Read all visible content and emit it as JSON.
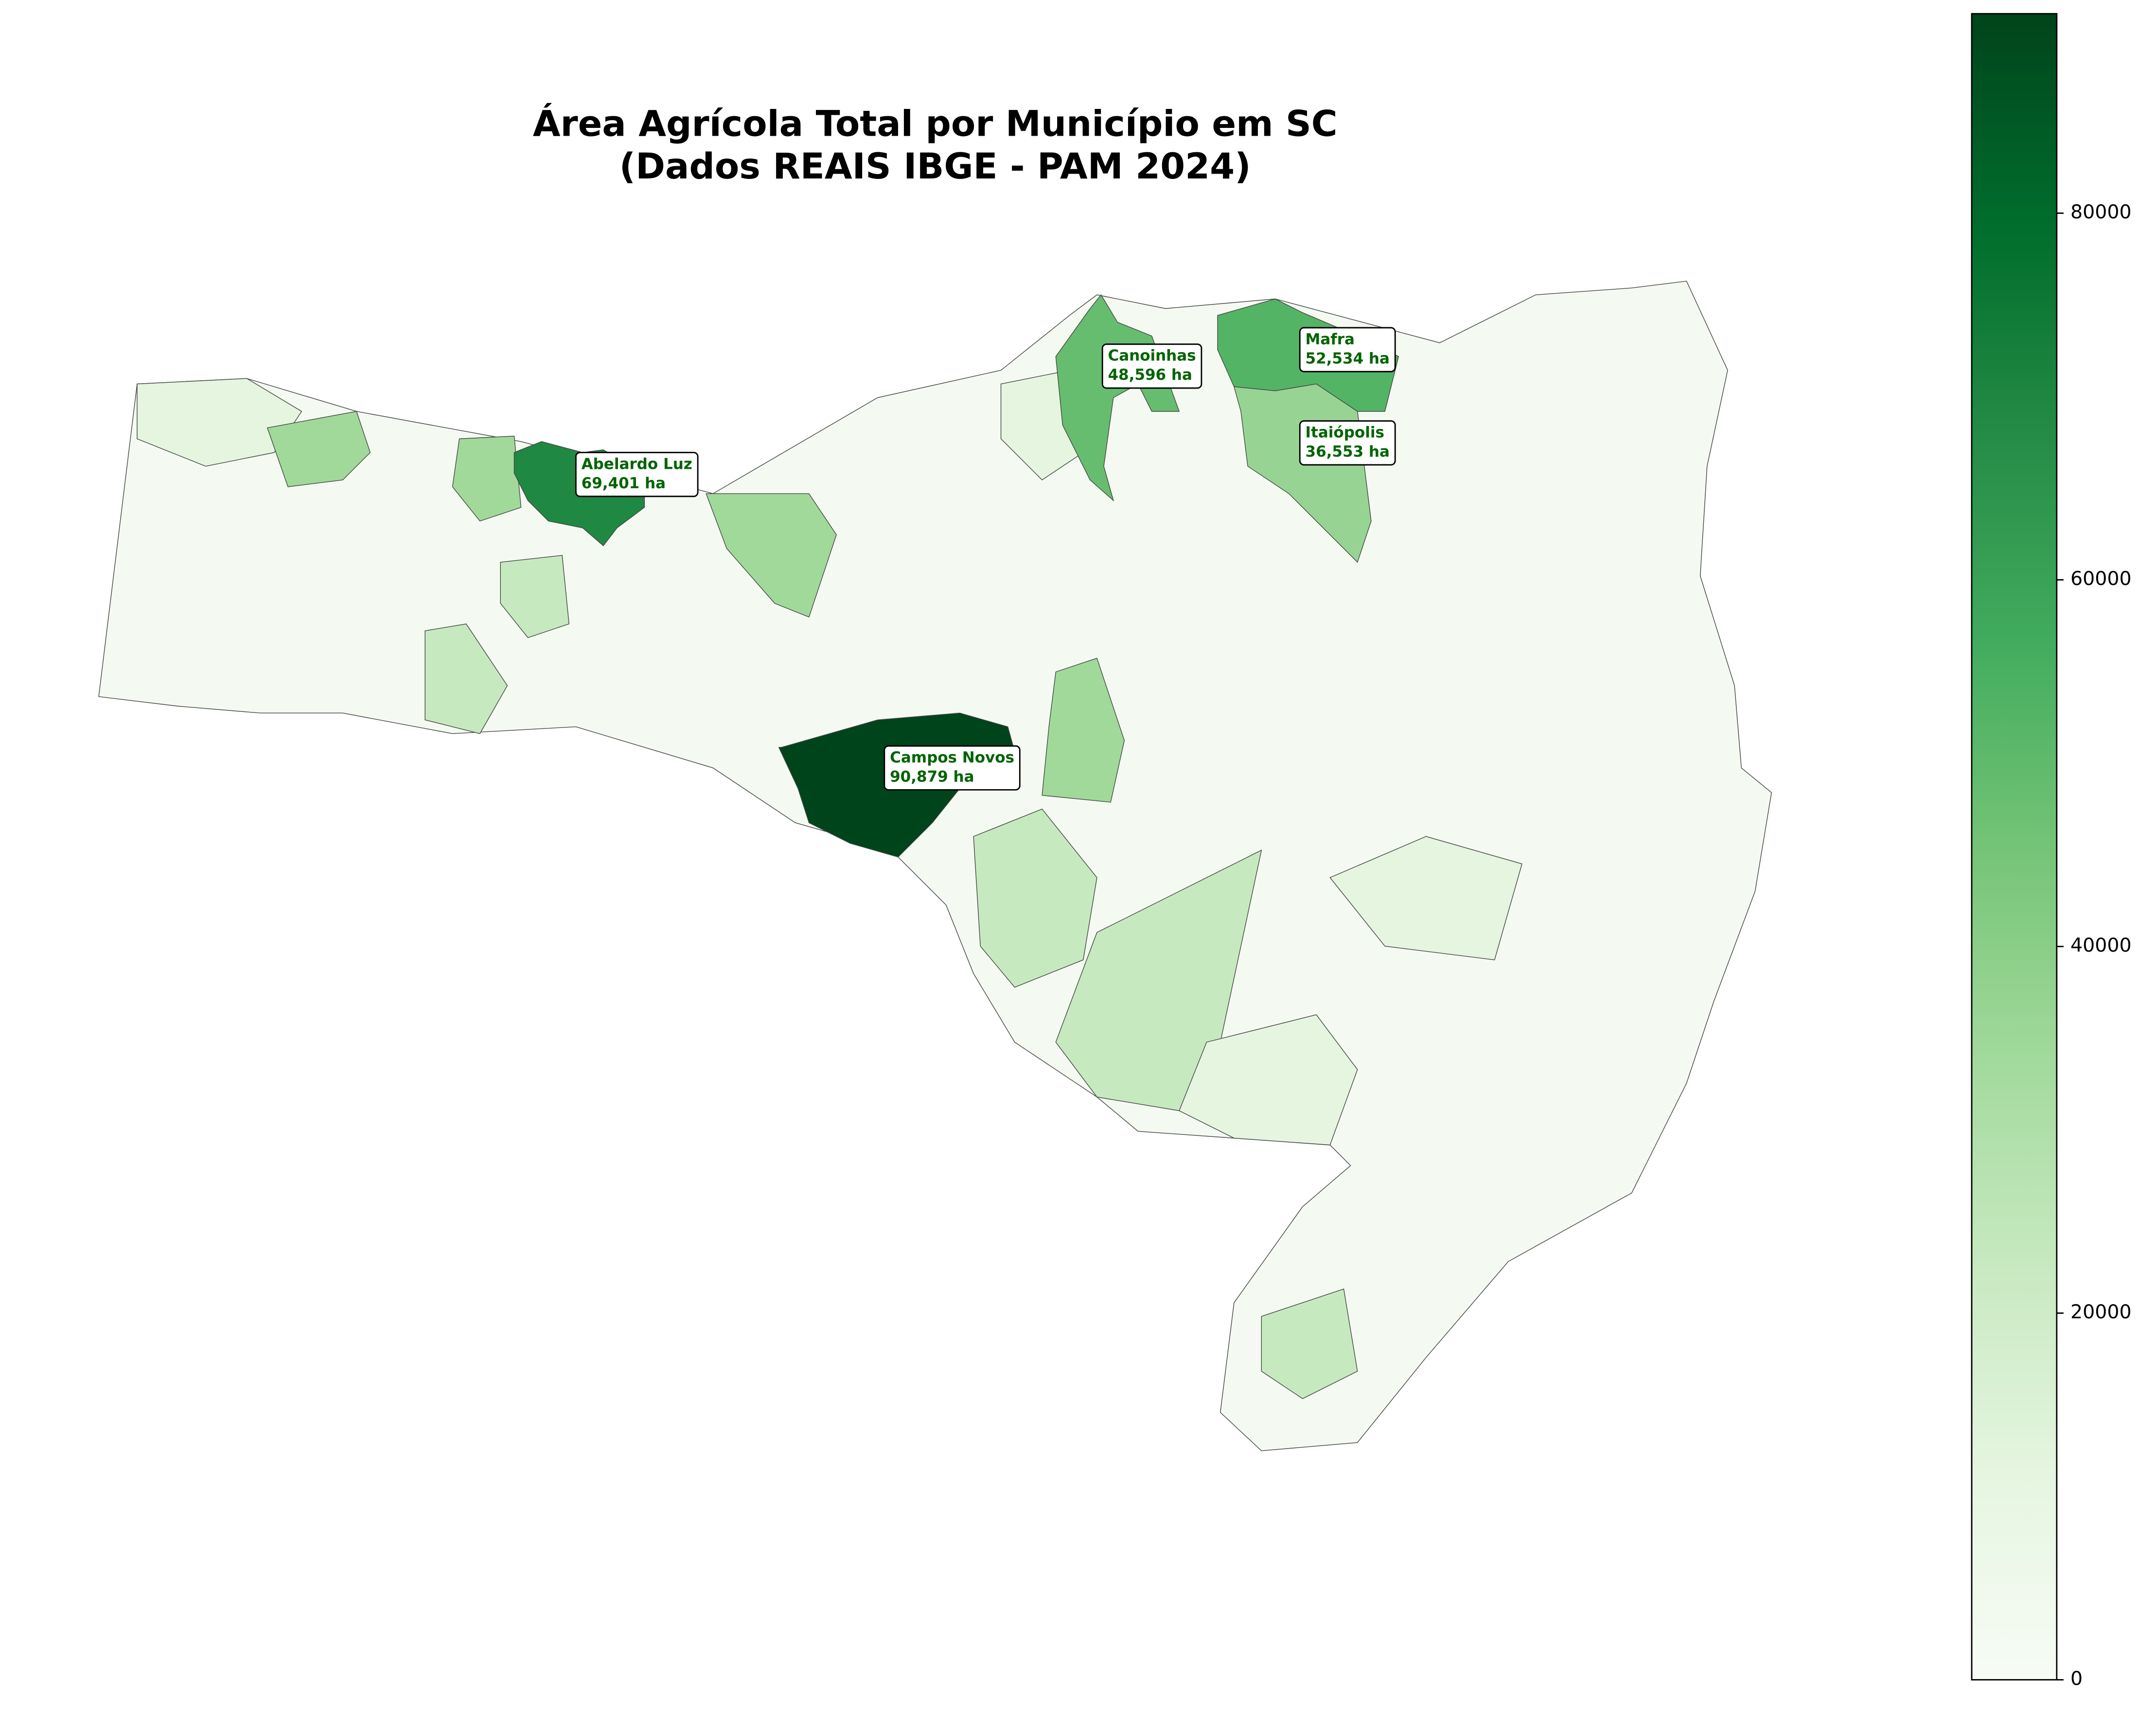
{
  "chart_data": {
    "type": "choropleth",
    "title": "Área Agrícola Total por Município em SC",
    "subtitle": "(Dados REAIS IBGE - PAM 2024)",
    "regions": [
      {
        "name": "Campos Novos",
        "value": 90879,
        "value_label": "90,879 ha"
      },
      {
        "name": "Abelardo Luz",
        "value": 69401,
        "value_label": "69,401 ha"
      },
      {
        "name": "Canoinhas",
        "value": 48596,
        "value_label": "48,596 ha"
      },
      {
        "name": "Mafra",
        "value": 52534,
        "value_label": "52,534 ha"
      },
      {
        "name": "Itaiópolis",
        "value": 36553,
        "value_label": "36,553 ha"
      }
    ],
    "colormap": [
      "#f7fcf5",
      "#e5f5e0",
      "#c7e9c0",
      "#a1d99b",
      "#74c476",
      "#41ab5d",
      "#238b45",
      "#006d2c",
      "#00441b"
    ],
    "clim": [
      0,
      90879
    ],
    "cticks": [
      0,
      20000,
      40000,
      60000,
      80000
    ]
  }
}
